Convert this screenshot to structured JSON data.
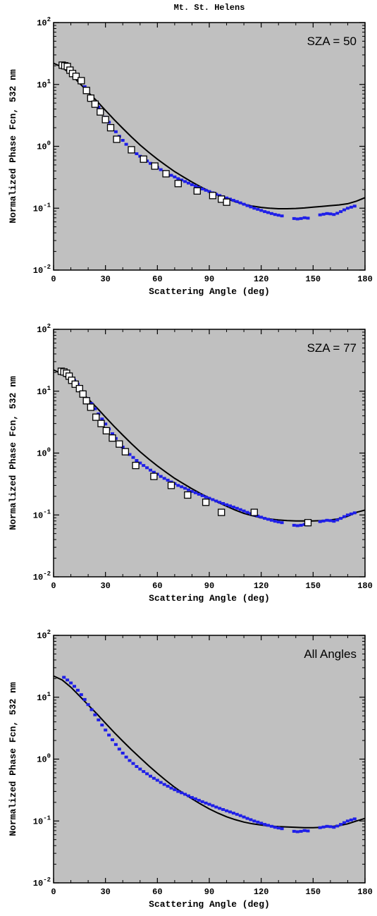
{
  "figure_title": "Mt. St. Helens",
  "chart_data": [
    {
      "type": "scatter",
      "annotation": "SZA = 50",
      "xlabel": "Scattering Angle (deg)",
      "ylabel": "Normalized Phase Fcn, 532 nm",
      "xlim": [
        0,
        180
      ],
      "ylim": [
        0.01,
        100
      ],
      "yscale": "log",
      "x_ticks": [
        "0",
        "30",
        "60",
        "90",
        "120",
        "150",
        "180"
      ],
      "y_ticks": [
        {
          "base": "10",
          "exp": "-2"
        },
        {
          "base": "10",
          "exp": "-1"
        },
        {
          "base": "10",
          "exp": "0"
        },
        {
          "base": "10",
          "exp": "1"
        },
        {
          "base": "10",
          "exp": "2"
        }
      ],
      "background": "#c0c0c0",
      "grid": false,
      "series": [
        {
          "style": "points",
          "color": "#1f1fe8",
          "x": [
            6,
            8,
            10,
            12,
            14,
            16,
            18,
            20,
            22,
            24,
            26,
            28,
            30,
            32,
            34,
            36,
            38,
            40,
            42,
            44,
            46,
            48,
            50,
            52,
            54,
            56,
            58,
            60,
            62,
            64,
            66,
            68,
            70,
            72,
            74,
            76,
            78,
            80,
            82,
            84,
            86,
            88,
            90,
            92,
            94,
            96,
            98,
            100,
            102,
            104,
            106,
            108,
            110,
            112,
            114,
            116,
            118,
            120,
            122,
            124,
            126,
            128,
            130,
            132,
            139,
            141,
            143,
            145,
            147,
            154,
            156,
            158,
            160,
            162,
            164,
            166,
            168,
            170,
            172,
            174
          ],
          "y": [
            21,
            19,
            17,
            15,
            13,
            11,
            9.2,
            7.6,
            6.3,
            5.2,
            4.3,
            3.55,
            2.95,
            2.45,
            2.05,
            1.72,
            1.45,
            1.25,
            1.08,
            0.95,
            0.85,
            0.76,
            0.69,
            0.63,
            0.58,
            0.53,
            0.49,
            0.455,
            0.42,
            0.39,
            0.365,
            0.34,
            0.32,
            0.3,
            0.285,
            0.27,
            0.255,
            0.24,
            0.228,
            0.216,
            0.205,
            0.195,
            0.186,
            0.177,
            0.168,
            0.16,
            0.153,
            0.146,
            0.14,
            0.134,
            0.128,
            0.122,
            0.116,
            0.11,
            0.105,
            0.1,
            0.096,
            0.092,
            0.088,
            0.085,
            0.082,
            0.079,
            0.077,
            0.075,
            0.068,
            0.067,
            0.068,
            0.07,
            0.069,
            0.078,
            0.08,
            0.082,
            0.081,
            0.079,
            0.083,
            0.088,
            0.094,
            0.1,
            0.104,
            0.108
          ]
        },
        {
          "style": "squares",
          "color": "#ffffff",
          "x": [
            5,
            6.5,
            8,
            9.5,
            11,
            13,
            16,
            19,
            21.5,
            24,
            27,
            30,
            33,
            36.5,
            45,
            52,
            58.5,
            65,
            72,
            83,
            92,
            97,
            100
          ],
          "y": [
            20.5,
            20,
            19.5,
            17,
            15,
            13.5,
            11.5,
            8,
            6,
            4.8,
            3.6,
            2.7,
            2,
            1.3,
            0.88,
            0.62,
            0.48,
            0.36,
            0.25,
            0.19,
            0.16,
            0.14,
            0.125
          ]
        },
        {
          "style": "line",
          "color": "#000000",
          "x": [
            0,
            5,
            10,
            15,
            20,
            25,
            30,
            35,
            40,
            45,
            50,
            55,
            60,
            65,
            70,
            75,
            80,
            85,
            90,
            95,
            100,
            105,
            110,
            115,
            120,
            125,
            130,
            135,
            140,
            145,
            150,
            155,
            160,
            165,
            170,
            175,
            180
          ],
          "y": [
            22,
            19,
            14.5,
            10.5,
            7.5,
            5.4,
            3.8,
            2.7,
            1.95,
            1.42,
            1.05,
            0.8,
            0.62,
            0.49,
            0.39,
            0.32,
            0.265,
            0.222,
            0.188,
            0.162,
            0.142,
            0.127,
            0.116,
            0.108,
            0.103,
            0.1,
            0.098,
            0.098,
            0.099,
            0.101,
            0.104,
            0.107,
            0.11,
            0.113,
            0.118,
            0.13,
            0.148
          ]
        }
      ]
    },
    {
      "type": "scatter",
      "annotation": "SZA = 77",
      "xlabel": "Scattering Angle (deg)",
      "ylabel": "Normalized Phase Fcn, 532 nm",
      "xlim": [
        0,
        180
      ],
      "ylim": [
        0.01,
        100
      ],
      "yscale": "log",
      "x_ticks": [
        "0",
        "30",
        "60",
        "90",
        "120",
        "150",
        "180"
      ],
      "y_ticks": [
        {
          "base": "10",
          "exp": "-2"
        },
        {
          "base": "10",
          "exp": "-1"
        },
        {
          "base": "10",
          "exp": "0"
        },
        {
          "base": "10",
          "exp": "1"
        },
        {
          "base": "10",
          "exp": "2"
        }
      ],
      "background": "#c0c0c0",
      "grid": false,
      "series": [
        {
          "style": "points",
          "color": "#1f1fe8",
          "x": [
            6,
            8,
            10,
            12,
            14,
            16,
            18,
            20,
            22,
            24,
            26,
            28,
            30,
            32,
            34,
            36,
            38,
            40,
            42,
            44,
            46,
            48,
            50,
            52,
            54,
            56,
            58,
            60,
            62,
            64,
            66,
            68,
            70,
            72,
            74,
            76,
            78,
            80,
            82,
            84,
            86,
            88,
            90,
            92,
            94,
            96,
            98,
            100,
            102,
            104,
            106,
            108,
            110,
            112,
            114,
            116,
            118,
            120,
            122,
            124,
            126,
            128,
            130,
            132,
            139,
            141,
            143,
            145,
            147,
            154,
            156,
            158,
            160,
            162,
            164,
            166,
            168,
            170,
            172,
            174
          ],
          "y": [
            21,
            19,
            17,
            15,
            13,
            11,
            9.2,
            7.6,
            6.3,
            5.2,
            4.3,
            3.55,
            2.95,
            2.45,
            2.05,
            1.72,
            1.45,
            1.25,
            1.08,
            0.95,
            0.85,
            0.76,
            0.69,
            0.63,
            0.58,
            0.53,
            0.49,
            0.455,
            0.42,
            0.39,
            0.365,
            0.34,
            0.32,
            0.3,
            0.285,
            0.27,
            0.255,
            0.24,
            0.228,
            0.216,
            0.205,
            0.195,
            0.186,
            0.177,
            0.168,
            0.16,
            0.153,
            0.146,
            0.14,
            0.134,
            0.128,
            0.122,
            0.116,
            0.11,
            0.105,
            0.1,
            0.096,
            0.092,
            0.088,
            0.085,
            0.082,
            0.079,
            0.077,
            0.075,
            0.068,
            0.067,
            0.068,
            0.07,
            0.069,
            0.078,
            0.08,
            0.082,
            0.081,
            0.079,
            0.083,
            0.088,
            0.094,
            0.1,
            0.104,
            0.108
          ]
        },
        {
          "style": "squares",
          "color": "#ffffff",
          "x": [
            4.5,
            6,
            7.5,
            9,
            10.5,
            12.5,
            15,
            17,
            19,
            21.5,
            24.5,
            27.5,
            30.5,
            34,
            38,
            41.5,
            47.5,
            58,
            68,
            77.5,
            88,
            97,
            116,
            147
          ],
          "y": [
            21,
            20.5,
            19.5,
            17.5,
            15,
            13,
            11,
            9,
            7,
            5.5,
            3.8,
            3,
            2.3,
            1.75,
            1.4,
            1.05,
            0.63,
            0.42,
            0.3,
            0.21,
            0.16,
            0.11,
            0.11,
            0.075
          ]
        },
        {
          "style": "line",
          "color": "#000000",
          "x": [
            0,
            5,
            10,
            15,
            20,
            25,
            30,
            35,
            40,
            45,
            50,
            55,
            60,
            65,
            70,
            75,
            80,
            85,
            90,
            95,
            100,
            105,
            110,
            115,
            120,
            125,
            130,
            135,
            140,
            145,
            150,
            155,
            160,
            165,
            170,
            175,
            180
          ],
          "y": [
            22,
            19,
            14.5,
            10.5,
            7.5,
            5.4,
            3.8,
            2.7,
            1.95,
            1.42,
            1.05,
            0.8,
            0.62,
            0.49,
            0.39,
            0.32,
            0.265,
            0.222,
            0.188,
            0.16,
            0.138,
            0.12,
            0.106,
            0.097,
            0.09,
            0.086,
            0.083,
            0.081,
            0.08,
            0.08,
            0.08,
            0.081,
            0.083,
            0.087,
            0.095,
            0.11,
            0.12
          ]
        }
      ]
    },
    {
      "type": "scatter",
      "annotation": "All Angles",
      "xlabel": "Scattering Angle (deg)",
      "ylabel": "Normalized Phase Fcn, 532 nm",
      "xlim": [
        0,
        180
      ],
      "ylim": [
        0.01,
        100
      ],
      "yscale": "log",
      "x_ticks": [
        "0",
        "30",
        "60",
        "90",
        "120",
        "150",
        "180"
      ],
      "y_ticks": [
        {
          "base": "10",
          "exp": "-2"
        },
        {
          "base": "10",
          "exp": "-1"
        },
        {
          "base": "10",
          "exp": "0"
        },
        {
          "base": "10",
          "exp": "1"
        },
        {
          "base": "10",
          "exp": "2"
        }
      ],
      "background": "#c0c0c0",
      "grid": false,
      "series": [
        {
          "style": "points",
          "color": "#1f1fe8",
          "x": [
            6,
            8,
            10,
            12,
            14,
            16,
            18,
            20,
            22,
            24,
            26,
            28,
            30,
            32,
            34,
            36,
            38,
            40,
            42,
            44,
            46,
            48,
            50,
            52,
            54,
            56,
            58,
            60,
            62,
            64,
            66,
            68,
            70,
            72,
            74,
            76,
            78,
            80,
            82,
            84,
            86,
            88,
            90,
            92,
            94,
            96,
            98,
            100,
            102,
            104,
            106,
            108,
            110,
            112,
            114,
            116,
            118,
            120,
            122,
            124,
            126,
            128,
            130,
            132,
            139,
            141,
            143,
            145,
            147,
            154,
            156,
            158,
            160,
            162,
            164,
            166,
            168,
            170,
            172,
            174
          ],
          "y": [
            21,
            19,
            17,
            15,
            13,
            11,
            9.2,
            7.6,
            6.3,
            5.2,
            4.3,
            3.55,
            2.95,
            2.45,
            2.05,
            1.72,
            1.45,
            1.25,
            1.08,
            0.95,
            0.85,
            0.76,
            0.69,
            0.63,
            0.58,
            0.53,
            0.49,
            0.455,
            0.42,
            0.39,
            0.365,
            0.34,
            0.32,
            0.3,
            0.285,
            0.27,
            0.255,
            0.24,
            0.228,
            0.216,
            0.205,
            0.195,
            0.186,
            0.177,
            0.168,
            0.16,
            0.153,
            0.146,
            0.14,
            0.134,
            0.128,
            0.122,
            0.116,
            0.11,
            0.105,
            0.1,
            0.096,
            0.092,
            0.088,
            0.085,
            0.082,
            0.079,
            0.077,
            0.075,
            0.068,
            0.067,
            0.068,
            0.07,
            0.069,
            0.078,
            0.08,
            0.082,
            0.081,
            0.079,
            0.083,
            0.088,
            0.094,
            0.1,
            0.104,
            0.108
          ]
        },
        {
          "style": "line",
          "color": "#000000",
          "x": [
            0,
            5,
            10,
            15,
            20,
            25,
            30,
            35,
            40,
            45,
            50,
            55,
            60,
            65,
            70,
            75,
            80,
            85,
            90,
            95,
            100,
            105,
            110,
            115,
            120,
            125,
            130,
            135,
            140,
            145,
            150,
            155,
            160,
            165,
            170,
            175,
            180
          ],
          "y": [
            22,
            19,
            14.5,
            10.5,
            7.5,
            5.4,
            3.8,
            2.7,
            1.95,
            1.42,
            1.05,
            0.78,
            0.59,
            0.45,
            0.35,
            0.28,
            0.228,
            0.188,
            0.157,
            0.134,
            0.117,
            0.105,
            0.096,
            0.09,
            0.086,
            0.083,
            0.081,
            0.08,
            0.079,
            0.078,
            0.078,
            0.079,
            0.081,
            0.084,
            0.09,
            0.1,
            0.11
          ]
        }
      ]
    }
  ]
}
